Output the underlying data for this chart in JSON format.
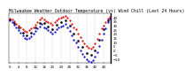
{
  "title": "Milwaukee Weather Outdoor Temperature (vs) Wind Chill (Last 24 Hours)",
  "background_color": "#ffffff",
  "grid_color": "#aaaaaa",
  "temp_color": "#dd0000",
  "windchill_color": "#0000cc",
  "marker_color": "#000000",
  "ylim": [
    -15,
    45
  ],
  "yticks": [
    0,
    10,
    20,
    30,
    40
  ],
  "hours": [
    0,
    1,
    2,
    3,
    4,
    5,
    6,
    7,
    8,
    9,
    10,
    11,
    12,
    13,
    14,
    15,
    16,
    17,
    18,
    19,
    20,
    21,
    22,
    23,
    24,
    25,
    26,
    27,
    28,
    29,
    30,
    31,
    32,
    33,
    34,
    35,
    36,
    37,
    38,
    39,
    40,
    41,
    42,
    43,
    44,
    45,
    46,
    47
  ],
  "temp": [
    38,
    37,
    35,
    32,
    30,
    28,
    25,
    23,
    22,
    24,
    26,
    28,
    31,
    34,
    37,
    39,
    37,
    35,
    34,
    33,
    31,
    34,
    36,
    38,
    39,
    40,
    41,
    39,
    36,
    32,
    28,
    25,
    20,
    16,
    12,
    8,
    5,
    3,
    2,
    4,
    8,
    14,
    20,
    26,
    30,
    34,
    38,
    40
  ],
  "windchill": [
    36,
    34,
    31,
    27,
    24,
    21,
    18,
    15,
    14,
    15,
    17,
    20,
    23,
    26,
    29,
    32,
    28,
    26,
    24,
    22,
    20,
    22,
    25,
    27,
    29,
    30,
    32,
    28,
    23,
    18,
    13,
    9,
    4,
    0,
    -4,
    -8,
    -11,
    -13,
    -14,
    -12,
    -8,
    -2,
    5,
    13,
    20,
    26,
    34,
    38
  ],
  "vline_positions": [
    4,
    8,
    12,
    16,
    20,
    24,
    28,
    32,
    36,
    40,
    44
  ],
  "title_fontsize": 3.5,
  "tick_fontsize": 2.8,
  "right_axis_yticks": [
    -10,
    -5,
    0,
    5,
    10,
    15,
    20,
    25,
    30,
    35,
    40
  ]
}
